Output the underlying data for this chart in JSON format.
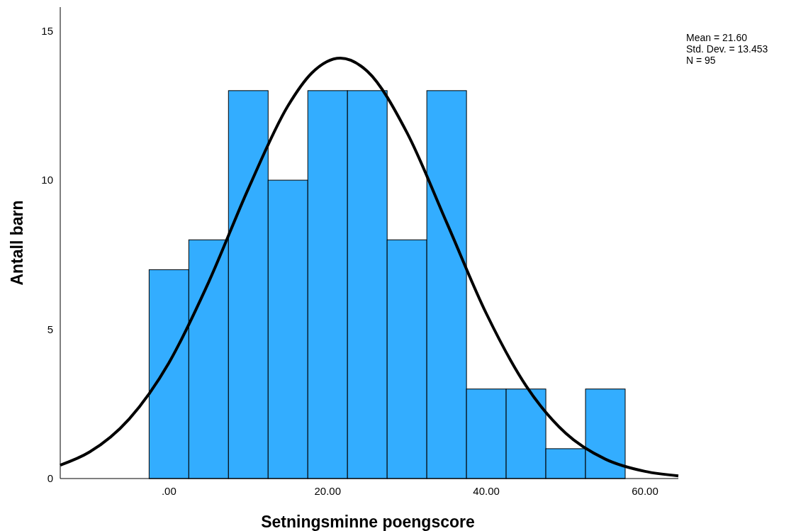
{
  "chart_data": {
    "type": "histogram",
    "xlabel": "Setningsminne poengscore",
    "ylabel": "Antall barn",
    "bins": [
      -2.5,
      2.5,
      7.5,
      12.5,
      17.5,
      22.5,
      27.5,
      32.5,
      37.5,
      42.5,
      47.5,
      52.5,
      57.5
    ],
    "xlim": [
      -13.7,
      64.2
    ],
    "xticks": [
      {
        "value": 0,
        "label": ".00"
      },
      {
        "value": 20,
        "label": "20.00"
      },
      {
        "value": 40,
        "label": "40.00"
      },
      {
        "value": 60,
        "label": "60.00"
      }
    ],
    "ylim": [
      0,
      15.8
    ],
    "yticks": [
      0,
      5,
      10,
      15
    ],
    "grid": false,
    "series": [
      {
        "color": "#33adff",
        "values": [
          7,
          8,
          13,
          10,
          13,
          13,
          8,
          13,
          3,
          3,
          1,
          3
        ]
      },
      {
        "type": "line",
        "color": "#000000",
        "x": [
          -13.7,
          -10,
          -5,
          0,
          5,
          10,
          15,
          18,
          21.6,
          25,
          30,
          35,
          40,
          45,
          50,
          55,
          60,
          64.2
        ],
        "values": [
          0.45,
          0.89,
          2.0,
          3.88,
          6.58,
          9.71,
          12.49,
          13.59,
          14.09,
          13.65,
          11.59,
          8.58,
          5.53,
          3.11,
          1.52,
          0.65,
          0.24,
          0.09
        ]
      }
    ],
    "annotations": [
      "Mean = 21.60",
      "Std. Dev. = 13.453",
      "N = 95"
    ]
  }
}
